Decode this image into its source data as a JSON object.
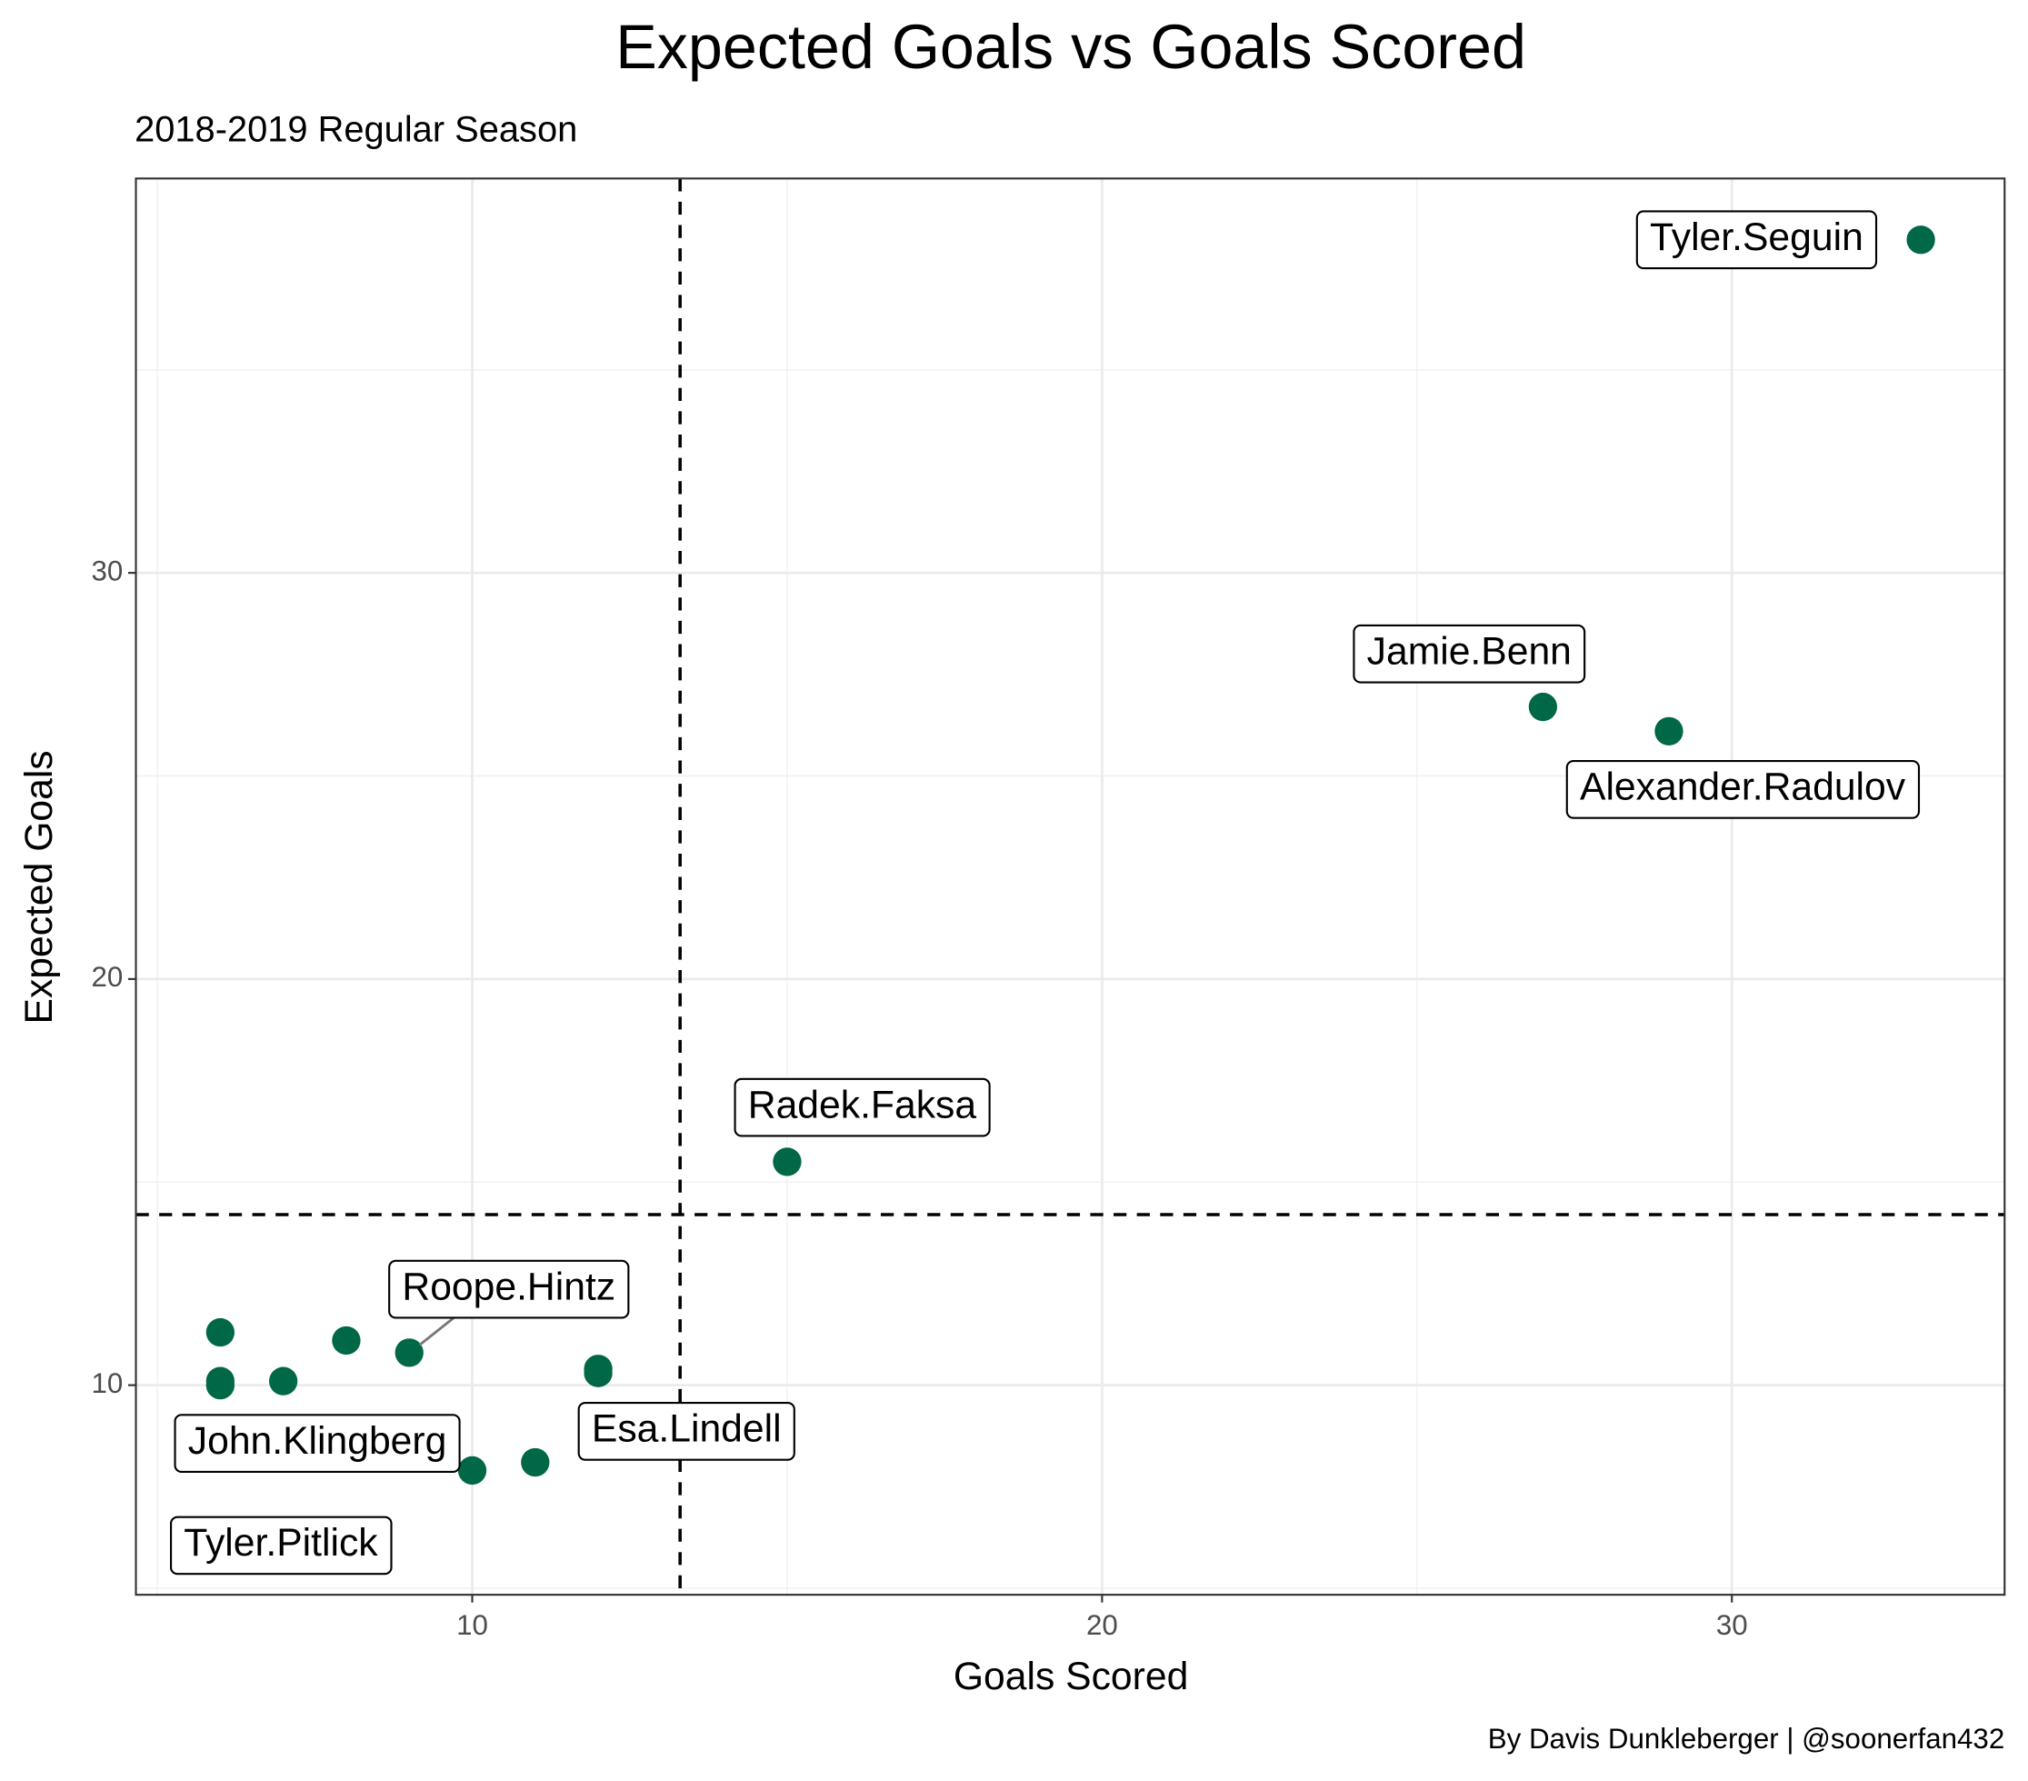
{
  "chart_data": {
    "type": "scatter",
    "title": "Expected Goals vs Goals Scored",
    "subtitle": "2018-2019 Regular Season",
    "x_label": "Goals Scored",
    "y_label": "Expected Goals",
    "caption": "By Davis Dunkleberger | @soonerfan432",
    "color": "#006847",
    "x": [
      33,
      27,
      29,
      15,
      9,
      6,
      10,
      11,
      6,
      6,
      7,
      8,
      12,
      12
    ],
    "y": [
      38.2,
      26.7,
      26.1,
      15.5,
      10.8,
      10.0,
      7.9,
      8.1,
      11.3,
      10.1,
      10.1,
      11.1,
      10.4,
      10.3
    ],
    "labels": [
      "Tyler.Seguin",
      "Jamie.Benn",
      "Alexander.Radulov",
      "Radek.Faksa",
      "Roope.Hintz",
      "John.Klingberg",
      "Tyler.Pitlick",
      "Esa.Lindell",
      null,
      null,
      null,
      null,
      null,
      null
    ],
    "vline": 13.3,
    "hline": 14.2,
    "xlim": [
      4.66,
      34.33
    ],
    "ylim": [
      4.84,
      39.71
    ],
    "xticks": [
      10,
      20,
      30
    ],
    "yticks": [
      10,
      20,
      30
    ],
    "minor_xticks": [
      5,
      15,
      25
    ],
    "minor_yticks": [
      5,
      15,
      25,
      35
    ],
    "grid": true
  }
}
